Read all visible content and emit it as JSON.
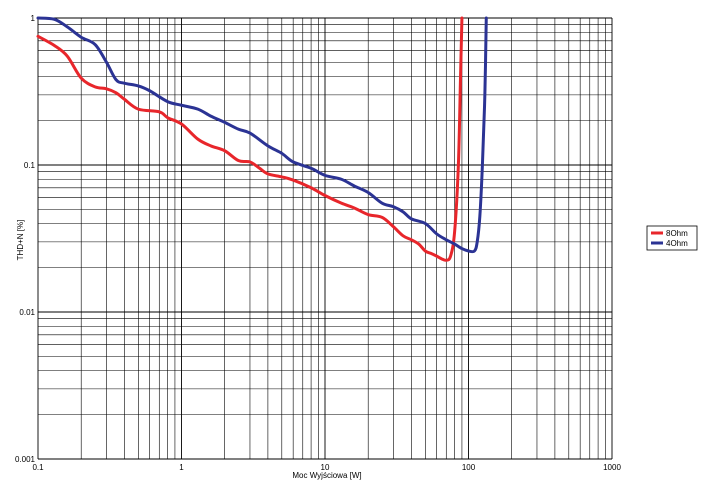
{
  "chart_data": {
    "type": "line",
    "xlabel": "Moc Wyjściowa [W]",
    "ylabel": "THD+N [%]",
    "x_scale": "log",
    "y_scale": "log",
    "xlim": [
      0.1,
      1000
    ],
    "ylim": [
      0.001,
      1
    ],
    "x_ticks": [
      "0.1",
      "1",
      "10",
      "100",
      "1000"
    ],
    "y_ticks": [
      "0.001",
      "0.01",
      "0.1",
      "1"
    ],
    "grid": true,
    "legend_position": "right",
    "series": [
      {
        "name": "8Ohm",
        "color": "#e8262b",
        "points": [
          [
            0.1,
            0.75
          ],
          [
            0.13,
            0.65
          ],
          [
            0.16,
            0.55
          ],
          [
            0.2,
            0.39
          ],
          [
            0.25,
            0.34
          ],
          [
            0.3,
            0.33
          ],
          [
            0.35,
            0.31
          ],
          [
            0.4,
            0.28
          ],
          [
            0.5,
            0.24
          ],
          [
            0.7,
            0.23
          ],
          [
            0.8,
            0.21
          ],
          [
            1.0,
            0.19
          ],
          [
            1.3,
            0.15
          ],
          [
            1.6,
            0.135
          ],
          [
            2.0,
            0.125
          ],
          [
            2.5,
            0.107
          ],
          [
            3.0,
            0.105
          ],
          [
            3.5,
            0.095
          ],
          [
            4.0,
            0.087
          ],
          [
            5.0,
            0.083
          ],
          [
            6.0,
            0.079
          ],
          [
            8.0,
            0.07
          ],
          [
            10,
            0.062
          ],
          [
            13,
            0.055
          ],
          [
            16,
            0.051
          ],
          [
            20,
            0.046
          ],
          [
            25,
            0.044
          ],
          [
            30,
            0.038
          ],
          [
            35,
            0.033
          ],
          [
            40,
            0.031
          ],
          [
            45,
            0.029
          ],
          [
            50,
            0.026
          ],
          [
            55,
            0.025
          ],
          [
            60,
            0.024
          ],
          [
            65,
            0.023
          ],
          [
            70,
            0.0225
          ],
          [
            75,
            0.024
          ],
          [
            80,
            0.035
          ],
          [
            85,
            0.1
          ],
          [
            88,
            0.4
          ],
          [
            90,
            1.0
          ]
        ]
      },
      {
        "name": "4Ohm",
        "color": "#2b3394",
        "points": [
          [
            0.1,
            1.0
          ],
          [
            0.13,
            0.98
          ],
          [
            0.16,
            0.87
          ],
          [
            0.2,
            0.74
          ],
          [
            0.25,
            0.66
          ],
          [
            0.3,
            0.5
          ],
          [
            0.35,
            0.38
          ],
          [
            0.4,
            0.36
          ],
          [
            0.5,
            0.345
          ],
          [
            0.6,
            0.32
          ],
          [
            0.8,
            0.27
          ],
          [
            1.0,
            0.255
          ],
          [
            1.3,
            0.24
          ],
          [
            1.6,
            0.215
          ],
          [
            2.0,
            0.195
          ],
          [
            2.5,
            0.175
          ],
          [
            3.0,
            0.165
          ],
          [
            4.0,
            0.135
          ],
          [
            5.0,
            0.12
          ],
          [
            6.0,
            0.105
          ],
          [
            8.0,
            0.095
          ],
          [
            10,
            0.085
          ],
          [
            13,
            0.08
          ],
          [
            16,
            0.072
          ],
          [
            20,
            0.065
          ],
          [
            25,
            0.055
          ],
          [
            30,
            0.052
          ],
          [
            35,
            0.048
          ],
          [
            40,
            0.043
          ],
          [
            50,
            0.04
          ],
          [
            60,
            0.034
          ],
          [
            70,
            0.031
          ],
          [
            80,
            0.029
          ],
          [
            90,
            0.027
          ],
          [
            100,
            0.026
          ],
          [
            110,
            0.026
          ],
          [
            115,
            0.03
          ],
          [
            120,
            0.045
          ],
          [
            125,
            0.1
          ],
          [
            130,
            0.3
          ],
          [
            133,
            1.0
          ]
        ]
      }
    ]
  }
}
